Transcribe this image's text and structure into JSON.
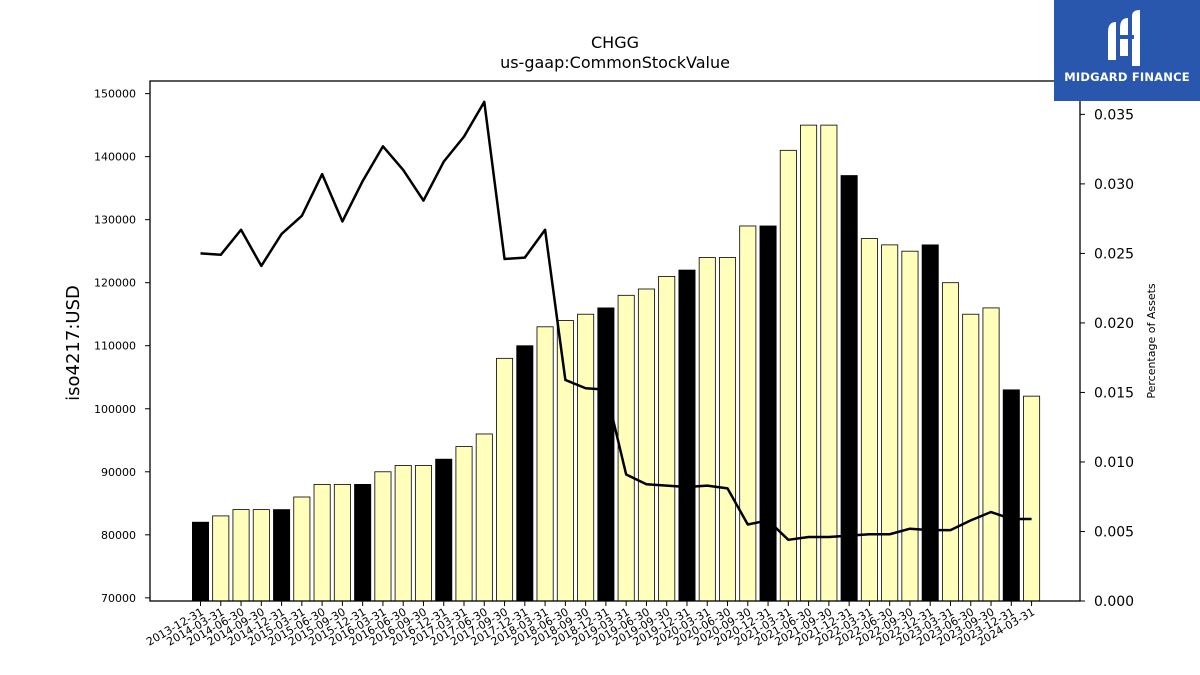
{
  "chart_data": {
    "type": "bar",
    "title": "CHGG",
    "subtitle": "us-gaap:CommonStockValue",
    "ylabel": "iso4217:USD",
    "y2label": "Percentage of Assets",
    "ylim": [
      69500,
      152000
    ],
    "y2lim": [
      0,
      0.0374
    ],
    "yticks": [
      "70000",
      "80000",
      "90000",
      "100000",
      "110000",
      "120000",
      "130000",
      "140000",
      "150000"
    ],
    "y2ticks": [
      "0.000",
      "0.005",
      "0.010",
      "0.015",
      "0.020",
      "0.025",
      "0.030",
      "0.035"
    ],
    "categories": [
      "2013-12-31",
      "2014-03-31",
      "2014-06-30",
      "2014-09-30",
      "2014-12-31",
      "2015-03-31",
      "2015-06-30",
      "2015-09-30",
      "2015-12-31",
      "2016-03-31",
      "2016-06-30",
      "2016-09-30",
      "2016-12-31",
      "2017-03-31",
      "2017-06-30",
      "2017-09-30",
      "2017-12-31",
      "2018-03-31",
      "2018-06-30",
      "2018-09-30",
      "2018-12-31",
      "2019-03-31",
      "2019-06-30",
      "2019-09-30",
      "2019-12-31",
      "2020-03-31",
      "2020-06-30",
      "2020-09-30",
      "2020-12-31",
      "2021-03-31",
      "2021-06-30",
      "2021-09-30",
      "2021-12-31",
      "2022-03-31",
      "2022-06-30",
      "2022-09-30",
      "2022-12-31",
      "2023-03-31",
      "2023-06-30",
      "2023-09-30",
      "2023-12-31",
      "2024-03-31"
    ],
    "series": [
      {
        "type": "bar",
        "values": [
          82000,
          83000,
          84000,
          84000,
          84000,
          86000,
          88000,
          88000,
          88000,
          90000,
          91000,
          91000,
          92000,
          94000,
          96000,
          108000,
          110000,
          113000,
          114000,
          115000,
          116000,
          118000,
          119000,
          121000,
          122000,
          124000,
          124000,
          129000,
          129000,
          141000,
          145000,
          145000,
          137000,
          127000,
          126000,
          125000,
          126000,
          120000,
          115000,
          116000,
          103000,
          102000
        ],
        "highlight": [
          true,
          false,
          false,
          false,
          true,
          false,
          false,
          false,
          true,
          false,
          false,
          false,
          true,
          false,
          false,
          false,
          true,
          false,
          false,
          false,
          true,
          false,
          false,
          false,
          true,
          false,
          false,
          false,
          true,
          false,
          false,
          false,
          true,
          false,
          false,
          false,
          true,
          false,
          false,
          false,
          true,
          false
        ],
        "colors": {
          "normal": "#ffffbb",
          "highlight": "#000000",
          "edge": "#000000"
        }
      },
      {
        "type": "line",
        "axis": "right",
        "color": "#000000",
        "values": [
          0.025,
          0.0249,
          0.0267,
          0.0241,
          0.0264,
          0.0277,
          0.0307,
          0.0273,
          0.0302,
          0.0327,
          0.031,
          0.0288,
          0.0316,
          0.0334,
          0.0359,
          0.0246,
          0.0247,
          0.0267,
          0.0159,
          0.0153,
          0.0152,
          0.0091,
          0.0084,
          0.0083,
          0.0082,
          0.0083,
          0.0081,
          0.0055,
          0.0058,
          0.0044,
          0.0046,
          0.0046,
          0.0047,
          0.0048,
          0.0048,
          0.0052,
          0.0051,
          0.0051,
          0.0058,
          0.0064,
          0.0059,
          0.0059
        ]
      }
    ],
    "grid": false
  },
  "logo": {
    "text": "MIDGARD FINANCE",
    "icon": "midgard-logo-icon"
  }
}
